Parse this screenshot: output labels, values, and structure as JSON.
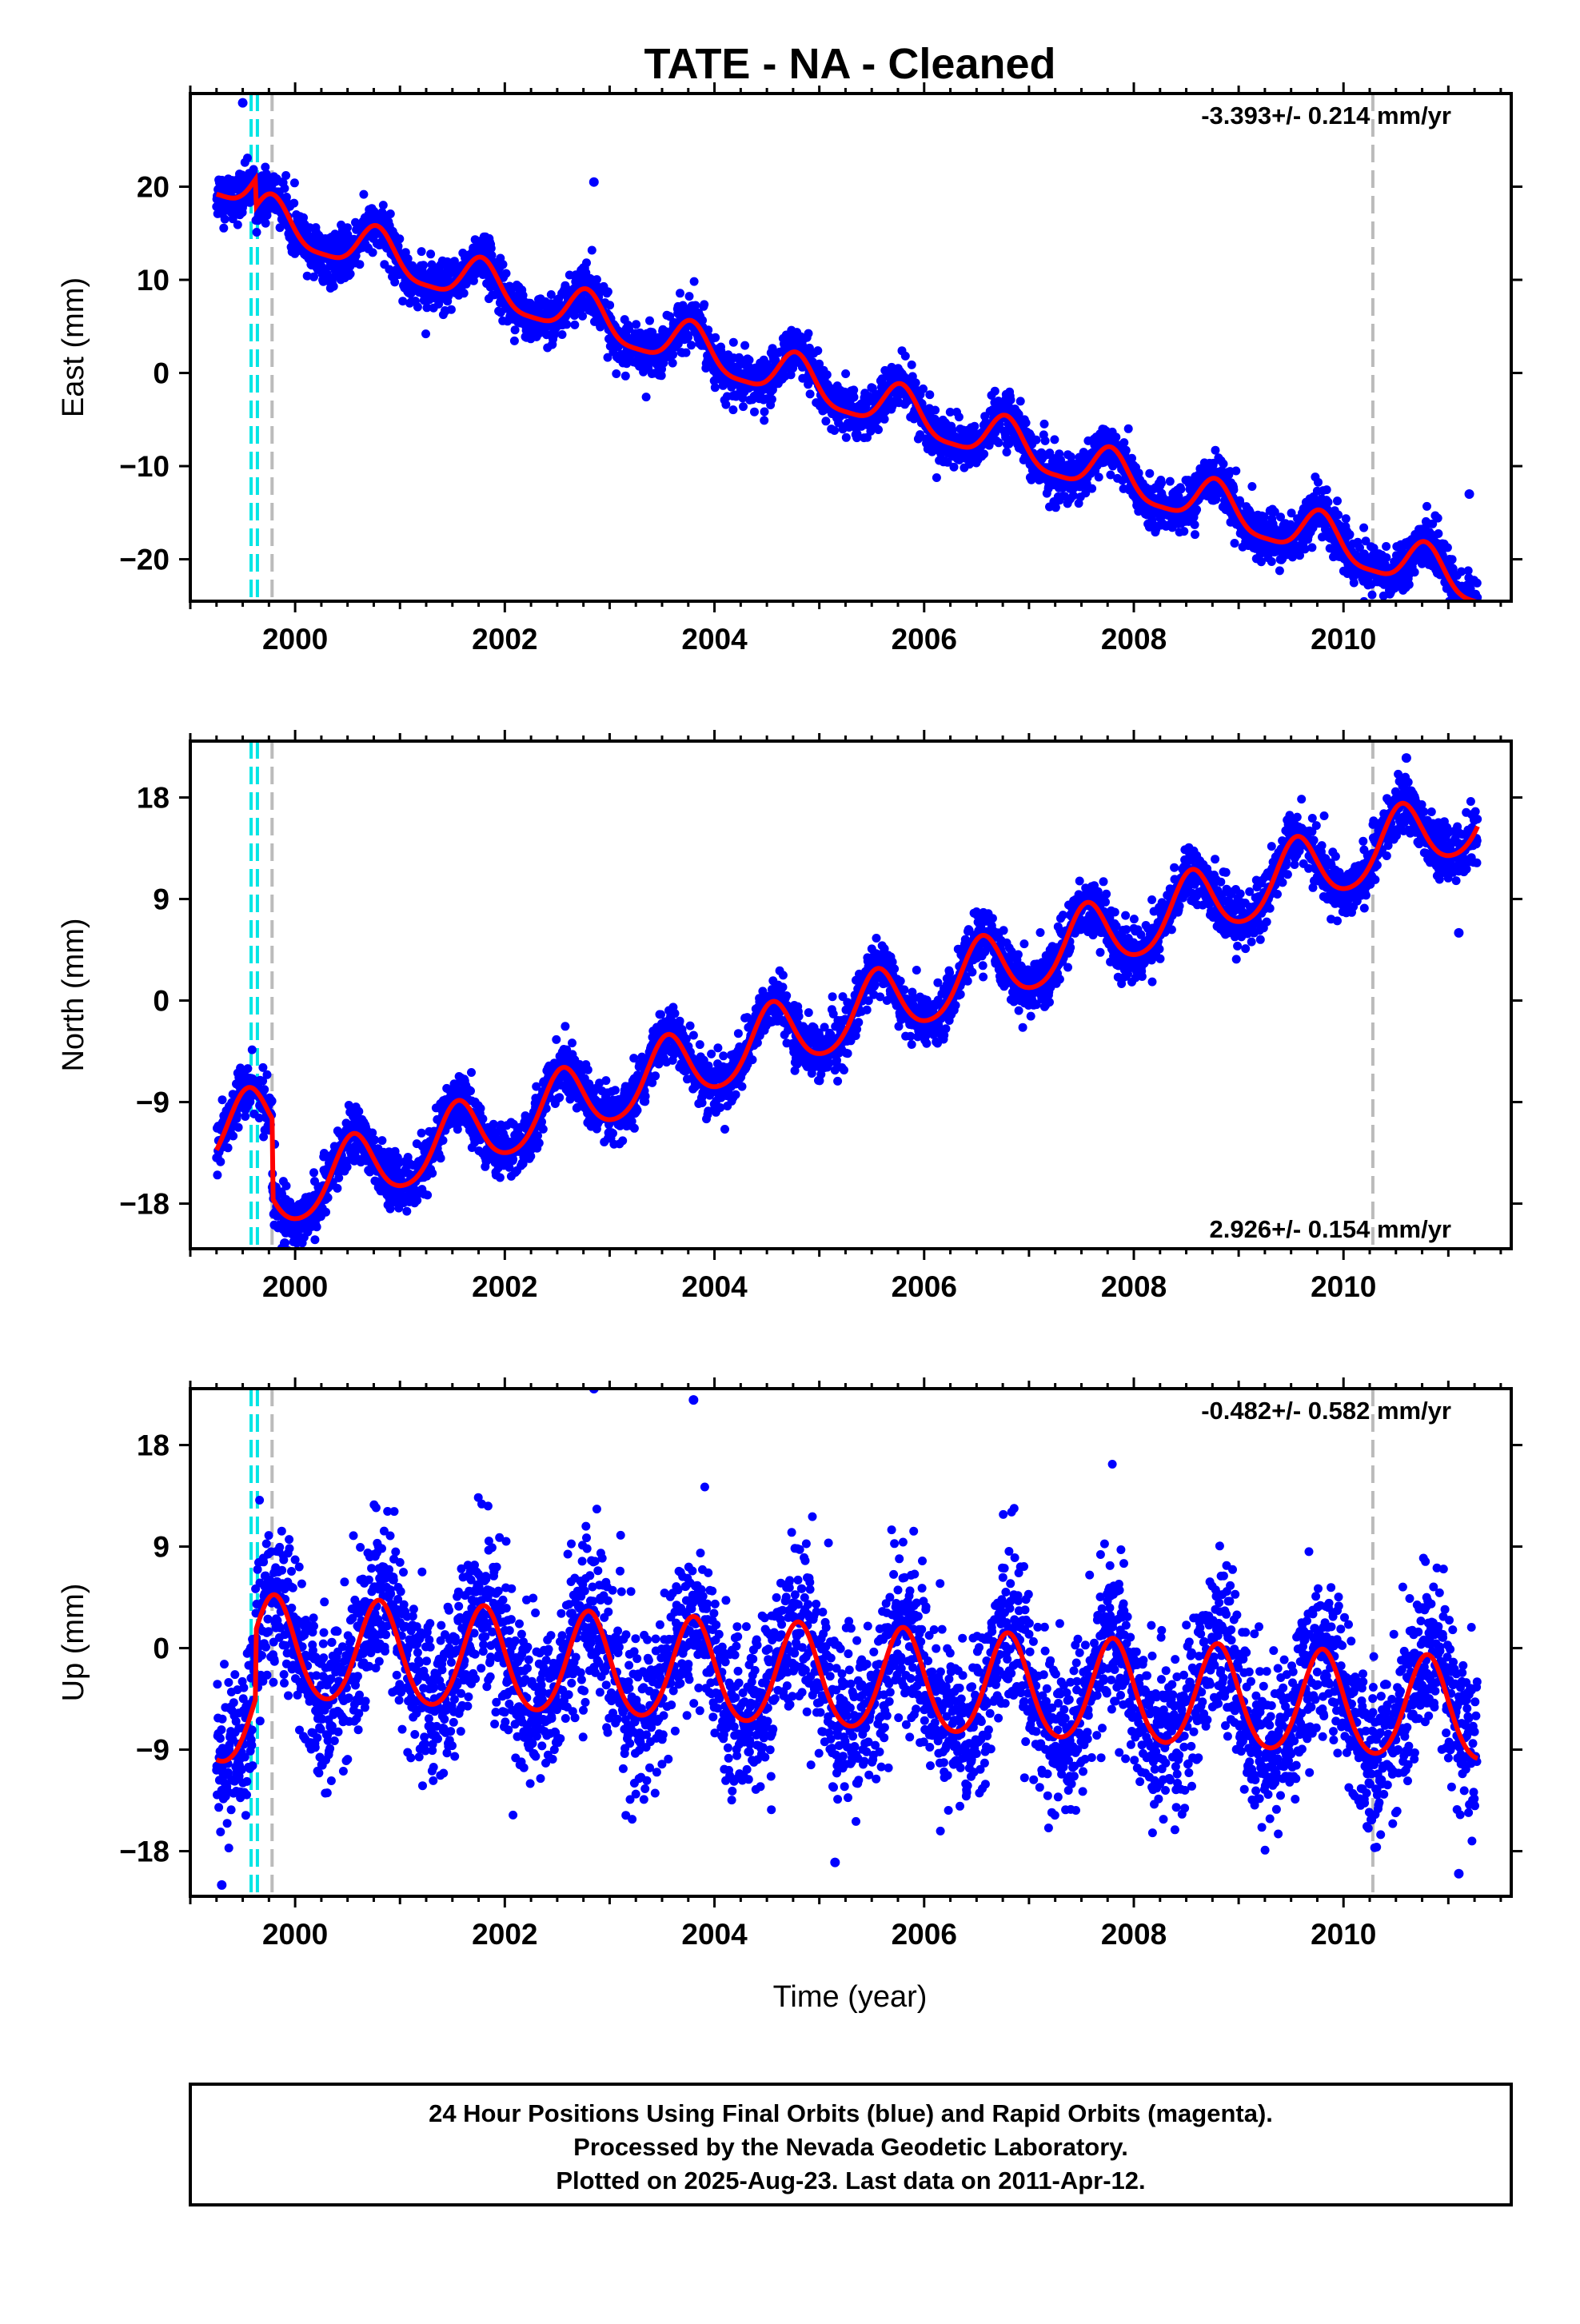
{
  "title": "TATE  - NA - Cleaned",
  "footer": {
    "line1": "24 Hour Positions Using Final Orbits (blue) and Rapid Orbits (magenta).",
    "line2": "Processed by the Nevada Geodetic Laboratory.",
    "line3": "Plotted on 2025-Aug-23. Last data on 2011-Apr-12."
  },
  "colors": {
    "points": "#0000ff",
    "model": "#ff0000",
    "antenna_change": "#00e5e5",
    "equipment_change": "#bbbbbb",
    "frame": "#000000"
  },
  "xaxis": {
    "label": "Time (year)",
    "range": [
      1999.0,
      2011.6
    ],
    "ticks": [
      2000,
      2002,
      2004,
      2006,
      2008,
      2010
    ],
    "tick_labels": [
      "2000",
      "2002",
      "2004",
      "2006",
      "2008",
      "2010"
    ]
  },
  "chart_data": [
    {
      "type": "scatter",
      "component": "east",
      "ylabel": "East (mm)",
      "ylim": [
        -24.5,
        30
      ],
      "yticks": [
        20,
        10,
        0,
        -10,
        -20
      ],
      "ytick_labels": [
        "20",
        "10",
        "0",
        "−10",
        "−20"
      ],
      "rate_text": "-3.393+/- 0.214 mm/yr",
      "rate_position": "top-right",
      "time_span": [
        1999.25,
        2011.28
      ],
      "velocity_mm_per_yr": -3.393,
      "ref_value_mm": 21,
      "annual_amplitude_mm": 2.4,
      "annual_peak_phase": 0.78,
      "semiannual_amplitude_mm": 0.6,
      "scatter_mm": 1.3,
      "offset": {
        "epoch": 1999.62,
        "size_mm": -3
      },
      "antenna_change_epochs": [
        1999.58,
        1999.64
      ],
      "equipment_change_epochs": [
        1999.78,
        2010.28
      ],
      "outliers": [
        {
          "x": 1999.5,
          "y": 29
        },
        {
          "x": 2002.85,
          "y": 20.5
        },
        {
          "x": 2011.2,
          "y": -13
        }
      ]
    },
    {
      "type": "scatter",
      "component": "north",
      "ylabel": "North (mm)",
      "ylim": [
        -22,
        23
      ],
      "yticks": [
        18,
        9,
        0,
        -9,
        -18
      ],
      "ytick_labels": [
        "18",
        "9",
        "0",
        "−9",
        "−18"
      ],
      "rate_text": "2.926+/- 0.154 mm/yr",
      "rate_position": "bottom-right",
      "time_span": [
        1999.25,
        2011.28
      ],
      "velocity_mm_per_yr": 2.926,
      "ref_value_mm": -12,
      "annual_amplitude_mm": 3.0,
      "annual_peak_phase": 0.55,
      "semiannual_amplitude_mm": 0.4,
      "scatter_mm": 1.2,
      "offset": {
        "epoch": 1999.78,
        "size_mm": -7
      },
      "antenna_change_epochs": [
        1999.58,
        1999.64
      ],
      "equipment_change_epochs": [
        1999.78,
        2010.28
      ],
      "outliers": [
        {
          "x": 2010.6,
          "y": 21.5
        },
        {
          "x": 2011.1,
          "y": 6
        },
        {
          "x": 1999.9,
          "y": -21.5
        }
      ]
    },
    {
      "type": "scatter",
      "component": "up",
      "ylabel": "Up (mm)",
      "ylim": [
        -22,
        23
      ],
      "yticks": [
        18,
        9,
        0,
        -9,
        -18
      ],
      "ytick_labels": [
        "18",
        "9",
        "0",
        "−9",
        "−18"
      ],
      "rate_text": "-0.482+/- 0.582 mm/yr",
      "rate_position": "top-right",
      "time_span": [
        1999.25,
        2011.28
      ],
      "velocity_mm_per_yr": -0.482,
      "ref_value_mm": -6,
      "annual_amplitude_mm": 4.5,
      "annual_peak_phase": 0.8,
      "semiannual_amplitude_mm": 0.5,
      "scatter_mm": 3.6,
      "offset": {
        "epoch": 1999.62,
        "size_mm": 6
      },
      "antenna_change_epochs": [
        1999.58,
        1999.64
      ],
      "equipment_change_epochs": [
        1999.78,
        2010.28
      ],
      "outliers": [
        {
          "x": 2002.85,
          "y": 23
        },
        {
          "x": 2003.8,
          "y": 22
        },
        {
          "x": 2005.15,
          "y": -19
        },
        {
          "x": 2011.1,
          "y": -20
        },
        {
          "x": 1999.3,
          "y": -21
        }
      ]
    }
  ]
}
